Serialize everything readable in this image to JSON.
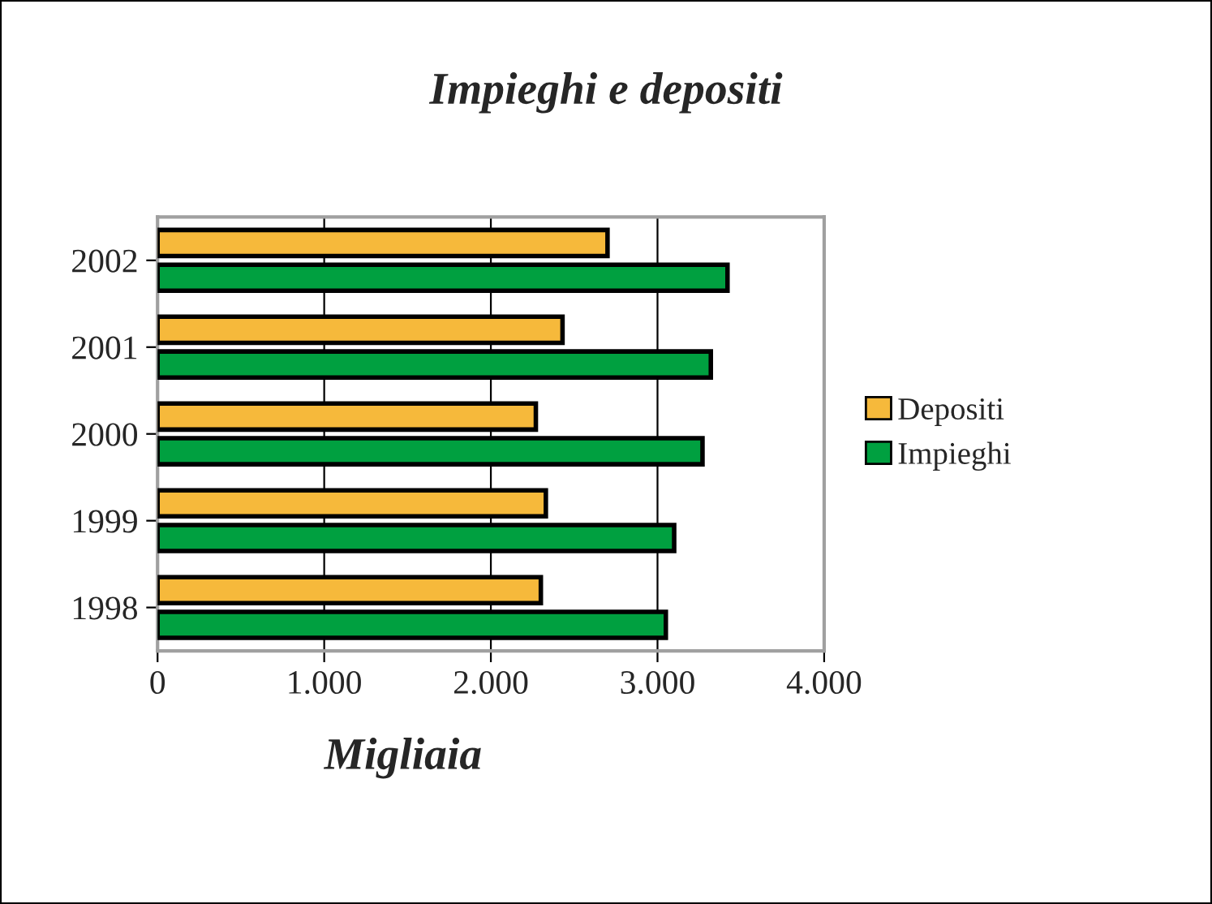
{
  "chart_data": {
    "type": "bar",
    "orientation": "horizontal",
    "title": "Impieghi e depositi",
    "xlabel": "Migliaia",
    "categories": [
      "2002",
      "2001",
      "2000",
      "1999",
      "1998"
    ],
    "series": [
      {
        "name": "Depositi",
        "color": "#f6b93b",
        "values": [
          2700,
          2430,
          2270,
          2330,
          2300
        ]
      },
      {
        "name": "Impieghi",
        "color": "#00a040",
        "values": [
          3420,
          3320,
          3270,
          3100,
          3050
        ]
      }
    ],
    "xlim": [
      0,
      4000
    ],
    "xticks": [
      {
        "value": 0,
        "label": "0"
      },
      {
        "value": 1000,
        "label": "1.000"
      },
      {
        "value": 2000,
        "label": "2.000"
      },
      {
        "value": 3000,
        "label": "3.000"
      },
      {
        "value": 4000,
        "label": "4.000"
      }
    ],
    "grid": "x",
    "legend": "right"
  }
}
